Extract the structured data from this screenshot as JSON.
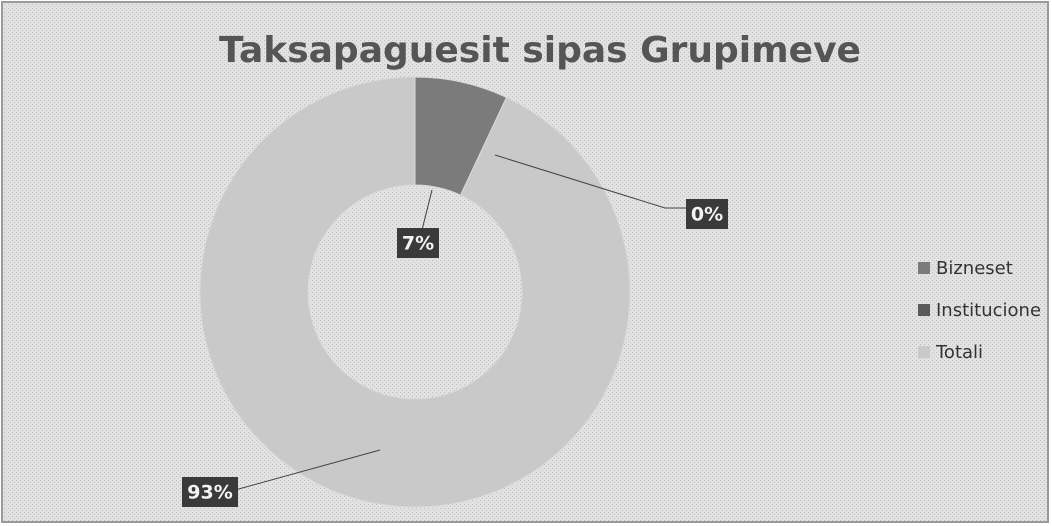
{
  "chart_data": {
    "type": "donut",
    "title": "Taksapaguesit sipas Grupimeve",
    "categories": [
      "Bizneset",
      "Institucione",
      "Totali"
    ],
    "values": [
      7,
      0,
      93
    ],
    "value_labels": [
      "7%",
      "0%",
      "93%"
    ],
    "colors": [
      "#7b7b7b",
      "#5a5a5a",
      "#c9c9c9"
    ],
    "legend": "right"
  }
}
